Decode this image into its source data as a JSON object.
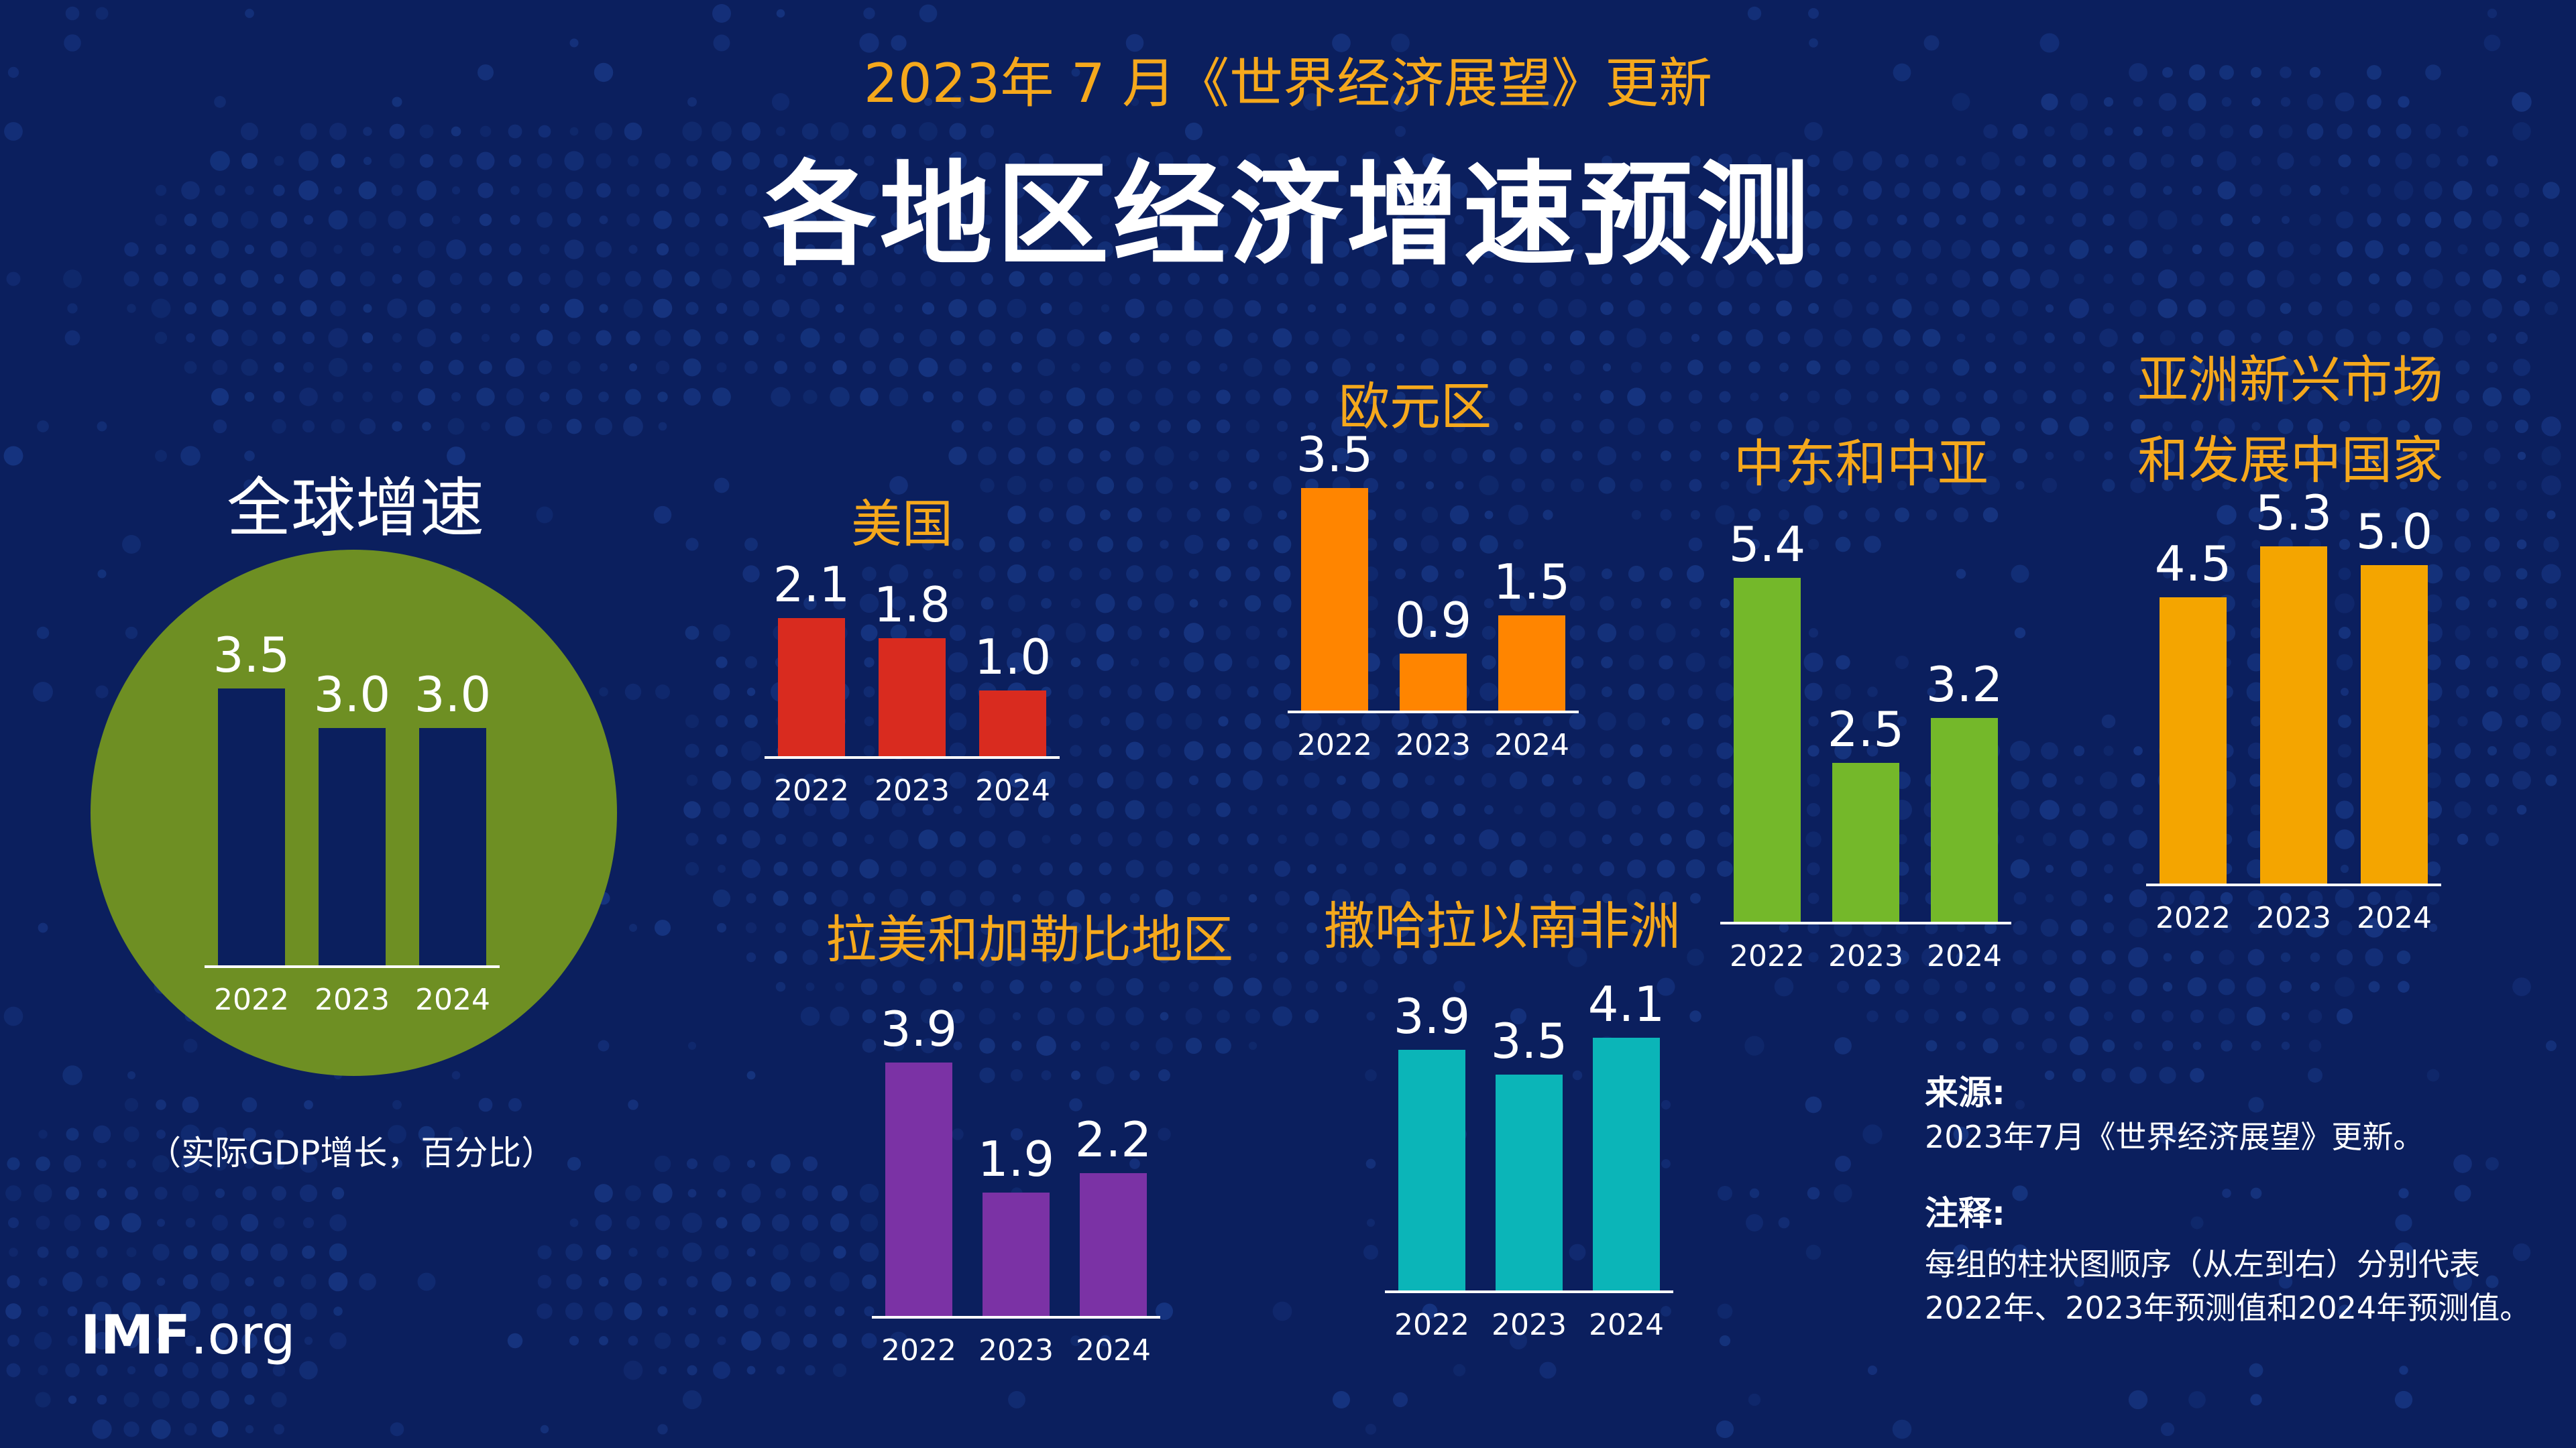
{
  "header": {
    "subtitle": "2023年 7 月《世界经济展望》更新",
    "title": "各地区经济增速预测"
  },
  "colors": {
    "background": "#0b1f5e",
    "accent_text": "#f5a81c",
    "global_circle": "#6e8f23",
    "global_bar": "#0b1f5e"
  },
  "chart_data": [
    {
      "type": "bar",
      "title": "全球增速",
      "categories": [
        "2022",
        "2023",
        "2024"
      ],
      "values": [
        3.5,
        3.0,
        3.0
      ],
      "value_labels": [
        "3.5",
        "3.0",
        "3.0"
      ],
      "color": "#0b1f5e",
      "ylim": [
        0,
        5.5
      ]
    },
    {
      "type": "bar",
      "title": "美国",
      "categories": [
        "2022",
        "2023",
        "2024"
      ],
      "values": [
        2.1,
        1.8,
        1.0
      ],
      "value_labels": [
        "2.1",
        "1.8",
        "1.0"
      ],
      "color": "#d92b1f",
      "ylim": [
        0,
        5.5
      ]
    },
    {
      "type": "bar",
      "title": "欧元区",
      "categories": [
        "2022",
        "2023",
        "2024"
      ],
      "values": [
        3.5,
        0.9,
        1.5
      ],
      "value_labels": [
        "3.5",
        "0.9",
        "1.5"
      ],
      "color": "#ff8500",
      "ylim": [
        0,
        5.5
      ]
    },
    {
      "type": "bar",
      "title": "中东和中亚",
      "categories": [
        "2022",
        "2023",
        "2024"
      ],
      "values": [
        5.4,
        2.5,
        3.2
      ],
      "value_labels": [
        "5.4",
        "2.5",
        "3.2"
      ],
      "color": "#74b82a",
      "ylim": [
        0,
        5.5
      ]
    },
    {
      "type": "bar",
      "title": "亚洲新兴市场和发展中国家",
      "title_lines": [
        "亚洲新兴市场",
        "和发展中国家"
      ],
      "categories": [
        "2022",
        "2023",
        "2024"
      ],
      "values": [
        4.5,
        5.3,
        5.0
      ],
      "value_labels": [
        "4.5",
        "5.3",
        "5.0"
      ],
      "color": "#f4a500",
      "ylim": [
        0,
        5.5
      ]
    },
    {
      "type": "bar",
      "title": "拉美和加勒比地区",
      "categories": [
        "2022",
        "2023",
        "2024"
      ],
      "values": [
        3.9,
        1.9,
        2.2
      ],
      "value_labels": [
        "3.9",
        "1.9",
        "2.2"
      ],
      "color": "#7b32a5",
      "ylim": [
        0,
        5.5
      ]
    },
    {
      "type": "bar",
      "title": "撒哈拉以南非洲",
      "categories": [
        "2022",
        "2023",
        "2024"
      ],
      "values": [
        3.9,
        3.5,
        4.1
      ],
      "value_labels": [
        "3.9",
        "3.5",
        "4.1"
      ],
      "color": "#0bb5b8",
      "ylim": [
        0,
        5.5
      ]
    }
  ],
  "global_caption": "（实际GDP增长，百分比）",
  "source": {
    "label": "来源:",
    "text": "2023年7月《世界经济展望》更新。"
  },
  "notes": {
    "label": "注释:",
    "line1": "每组的柱状图顺序（从左到右）分别代表",
    "line2": "2022年、2023年预测值和2024年预测值。"
  },
  "logo": {
    "bold": "IMF",
    "rest": ".org"
  }
}
